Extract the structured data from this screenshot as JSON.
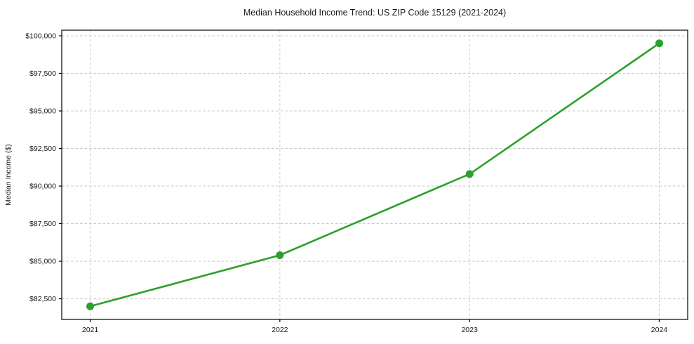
{
  "chart_data": {
    "type": "line",
    "title": "Median Household Income Trend: US ZIP Code 15129 (2021-2024)",
    "xlabel": "",
    "ylabel": "Median Income ($)",
    "x": [
      2021,
      2022,
      2023,
      2024
    ],
    "series": [
      {
        "name": "Median Household Income",
        "values": [
          82000,
          85400,
          90800,
          99500
        ],
        "color": "#2ca02c",
        "marker": "circle"
      }
    ],
    "xticks": {
      "values": [
        2021,
        2022,
        2023,
        2024
      ],
      "labels": [
        "2021",
        "2022",
        "2023",
        "2024"
      ]
    },
    "yticks": {
      "values": [
        82500,
        85000,
        87500,
        90000,
        92500,
        95000,
        97500,
        100000
      ],
      "labels": [
        "$82,500",
        "$85,000",
        "$87,500",
        "$90,000",
        "$92,500",
        "$95,000",
        "$97,500",
        "$100,000"
      ]
    },
    "xlim": [
      2020.85,
      2024.15
    ],
    "ylim": [
      81125,
      100375
    ],
    "grid": true,
    "grid_style": "dashed",
    "legend": "none",
    "colors": {
      "line": "#2ca02c",
      "grid": "#c9c9c9",
      "spine": "#000000",
      "tick_text": "#1a1a1a"
    }
  }
}
